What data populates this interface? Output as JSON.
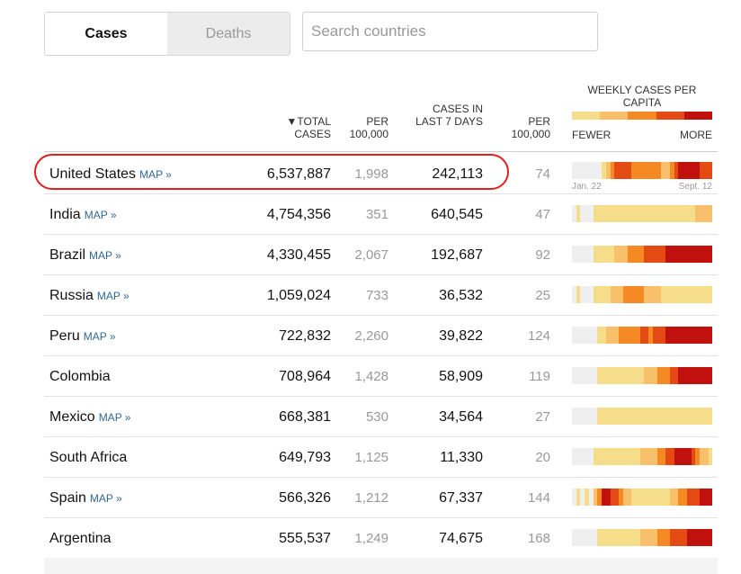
{
  "tabs": [
    {
      "label": "Cases",
      "active": true
    },
    {
      "label": "Deaths",
      "active": false
    }
  ],
  "search": {
    "placeholder": "Search countries",
    "value": ""
  },
  "headers": {
    "total_cases": "▼TOTAL CASES",
    "per_100k_1": "PER 100,000",
    "cases_last_7": "CASES IN LAST 7 DAYS",
    "per_100k_2": "PER 100,000",
    "weekly": "WEEKLY CASES PER CAPITA",
    "fewer": "FEWER",
    "more": "MORE"
  },
  "legend_colors": [
    "#f5dd8a",
    "#f8c06a",
    "#f58a24",
    "#e34a14",
    "#c0110f"
  ],
  "sparkline_dates": {
    "start": "Jan. 22",
    "end": "Sept. 12"
  },
  "map_link": "MAP »",
  "rows": [
    {
      "country": "United States",
      "map": true,
      "total": "6,537,887",
      "per100k": "1,998",
      "last7": "242,113",
      "last7_per100k": "74",
      "highlighted": true,
      "spark": [
        0,
        0,
        0,
        0,
        0,
        0,
        0,
        1,
        2,
        3,
        4,
        4,
        4,
        4,
        3,
        3,
        3,
        3,
        3,
        3,
        3,
        2,
        2,
        3,
        4,
        5,
        5,
        5,
        5,
        5,
        4,
        4,
        4
      ]
    },
    {
      "country": "India",
      "map": true,
      "total": "4,754,356",
      "per100k": "351",
      "last7": "640,545",
      "last7_per100k": "47",
      "highlighted": false,
      "spark": [
        0,
        1,
        0,
        0,
        0,
        1,
        1,
        1,
        1,
        1,
        1,
        1,
        1,
        1,
        1,
        1,
        1,
        1,
        1,
        1,
        1,
        1,
        1,
        1,
        1,
        1,
        1,
        1,
        1,
        2,
        2,
        2,
        2
      ]
    },
    {
      "country": "Brazil",
      "map": true,
      "total": "4,330,455",
      "per100k": "2,067",
      "last7": "192,687",
      "last7_per100k": "92",
      "highlighted": false,
      "spark": [
        0,
        0,
        0,
        0,
        0,
        1,
        1,
        1,
        1,
        1,
        2,
        2,
        2,
        3,
        3,
        3,
        3,
        4,
        4,
        4,
        4,
        4,
        5,
        5,
        5,
        5,
        5,
        5,
        5,
        5,
        5,
        5,
        5
      ]
    },
    {
      "country": "Russia",
      "map": true,
      "total": "1,059,024",
      "per100k": "733",
      "last7": "36,532",
      "last7_per100k": "25",
      "highlighted": false,
      "spark": [
        0,
        1,
        0,
        0,
        0,
        1,
        1,
        1,
        1,
        2,
        2,
        2,
        3,
        3,
        3,
        3,
        3,
        2,
        2,
        2,
        2,
        1,
        1,
        1,
        1,
        1,
        1,
        1,
        1,
        1,
        1,
        1,
        1
      ]
    },
    {
      "country": "Peru",
      "map": true,
      "total": "722,832",
      "per100k": "2,260",
      "last7": "39,822",
      "last7_per100k": "124",
      "highlighted": false,
      "spark": [
        0,
        0,
        0,
        0,
        0,
        0,
        1,
        1,
        2,
        2,
        2,
        3,
        3,
        3,
        3,
        3,
        4,
        4,
        3,
        4,
        4,
        4,
        5,
        5,
        5,
        5,
        5,
        5,
        5,
        5,
        5,
        5,
        5
      ]
    },
    {
      "country": "Colombia",
      "map": false,
      "total": "708,964",
      "per100k": "1,428",
      "last7": "58,909",
      "last7_per100k": "119",
      "highlighted": false,
      "spark": [
        0,
        0,
        0,
        0,
        0,
        0,
        1,
        1,
        1,
        1,
        1,
        1,
        1,
        1,
        1,
        1,
        1,
        2,
        2,
        2,
        3,
        3,
        3,
        4,
        4,
        5,
        5,
        5,
        5,
        5,
        5,
        5,
        5
      ]
    },
    {
      "country": "Mexico",
      "map": true,
      "total": "668,381",
      "per100k": "530",
      "last7": "34,564",
      "last7_per100k": "27",
      "highlighted": false,
      "spark": [
        0,
        0,
        0,
        0,
        0,
        0,
        1,
        1,
        1,
        1,
        1,
        1,
        1,
        1,
        1,
        1,
        1,
        1,
        1,
        1,
        1,
        1,
        1,
        1,
        1,
        1,
        1,
        1,
        1,
        1,
        1,
        1,
        1
      ]
    },
    {
      "country": "South Africa",
      "map": false,
      "total": "649,793",
      "per100k": "1,125",
      "last7": "11,330",
      "last7_per100k": "20",
      "highlighted": false,
      "spark": [
        0,
        0,
        0,
        0,
        0,
        1,
        1,
        1,
        1,
        1,
        1,
        1,
        1,
        1,
        1,
        1,
        2,
        2,
        2,
        2,
        3,
        3,
        4,
        4,
        5,
        5,
        5,
        5,
        4,
        3,
        2,
        2,
        1
      ]
    },
    {
      "country": "Spain",
      "map": true,
      "total": "566,326",
      "per100k": "1,212",
      "last7": "67,337",
      "last7_per100k": "144",
      "highlighted": false,
      "spark": [
        0,
        1,
        0,
        1,
        0,
        2,
        3,
        5,
        5,
        4,
        4,
        3,
        2,
        2,
        1,
        1,
        1,
        1,
        1,
        1,
        1,
        1,
        1,
        2,
        2,
        3,
        3,
        4,
        4,
        4,
        5,
        5,
        5
      ]
    },
    {
      "country": "Argentina",
      "map": false,
      "total": "555,537",
      "per100k": "1,249",
      "last7": "74,675",
      "last7_per100k": "168",
      "highlighted": false,
      "spark": [
        0,
        0,
        0,
        0,
        0,
        0,
        1,
        1,
        1,
        1,
        1,
        1,
        1,
        1,
        1,
        1,
        2,
        2,
        2,
        2,
        3,
        3,
        3,
        4,
        4,
        4,
        4,
        5,
        5,
        5,
        5,
        5,
        5
      ]
    }
  ]
}
